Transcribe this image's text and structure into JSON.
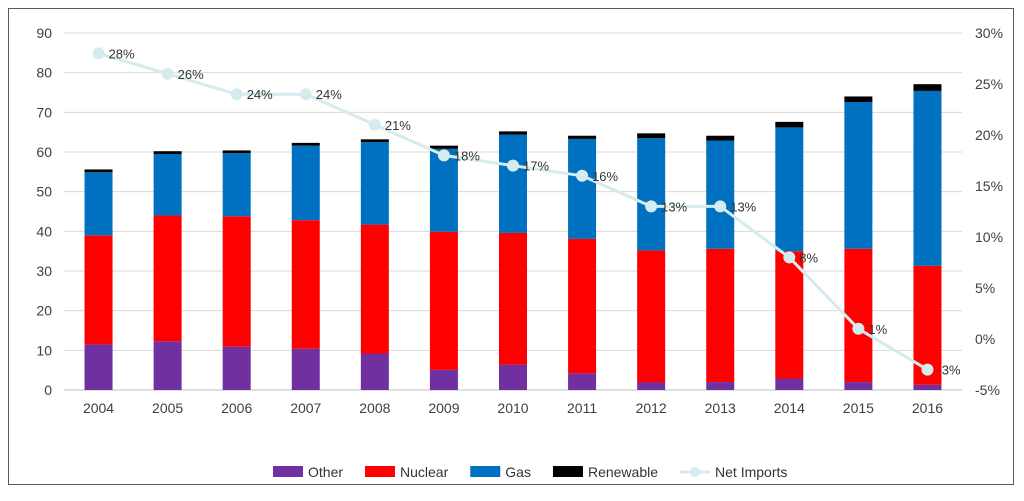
{
  "chart_data": {
    "type": "bar",
    "stacked": true,
    "categories": [
      "2004",
      "2005",
      "2006",
      "2007",
      "2008",
      "2009",
      "2010",
      "2011",
      "2012",
      "2013",
      "2014",
      "2015",
      "2016"
    ],
    "series": [
      {
        "name": "Other",
        "color": "#7030a0",
        "values": [
          11.5,
          12.3,
          10.9,
          10.4,
          9.2,
          5.1,
          6.4,
          4.2,
          1.9,
          2.0,
          2.9,
          2.0,
          1.3
        ]
      },
      {
        "name": "Nuclear",
        "color": "#ff0000",
        "values": [
          27.5,
          31.7,
          32.9,
          32.4,
          32.5,
          34.8,
          33.2,
          33.9,
          33.3,
          33.6,
          32.1,
          33.6,
          30.0
        ]
      },
      {
        "name": "Gas",
        "color": "#0070c0",
        "values": [
          15.9,
          15.5,
          15.9,
          18.8,
          20.8,
          20.9,
          24.8,
          25.2,
          28.3,
          27.3,
          31.2,
          37.0,
          44.1
        ]
      },
      {
        "name": "Renewable",
        "color": "#000000",
        "values": [
          0.7,
          0.7,
          0.7,
          0.7,
          0.7,
          0.8,
          0.8,
          0.8,
          1.2,
          1.2,
          1.4,
          1.4,
          1.7
        ]
      }
    ],
    "line_series": {
      "name": "Net Imports",
      "color": "#d6ebee",
      "axis": "right",
      "values": [
        28,
        26,
        24,
        24,
        21,
        18,
        17,
        16,
        13,
        13,
        8,
        1,
        -3
      ],
      "labels": [
        "28%",
        "26%",
        "24%",
        "24%",
        "21%",
        "18%",
        "17%",
        "16%",
        "13%",
        "13%",
        "8%",
        "1%",
        "-3%"
      ]
    },
    "y_left": {
      "min": 0,
      "max": 90,
      "ticks": [
        "0",
        "10",
        "20",
        "30",
        "40",
        "50",
        "60",
        "70",
        "80",
        "90"
      ]
    },
    "y_right": {
      "min": -5,
      "max": 30,
      "ticks": [
        "-5%",
        "0%",
        "5%",
        "10%",
        "15%",
        "20%",
        "25%",
        "30%"
      ]
    },
    "grid": true,
    "legend_position": "bottom",
    "legend": [
      "Other",
      "Nuclear",
      "Gas",
      "Renewable",
      "Net Imports"
    ],
    "title": "",
    "xlabel": "",
    "ylabel": ""
  }
}
